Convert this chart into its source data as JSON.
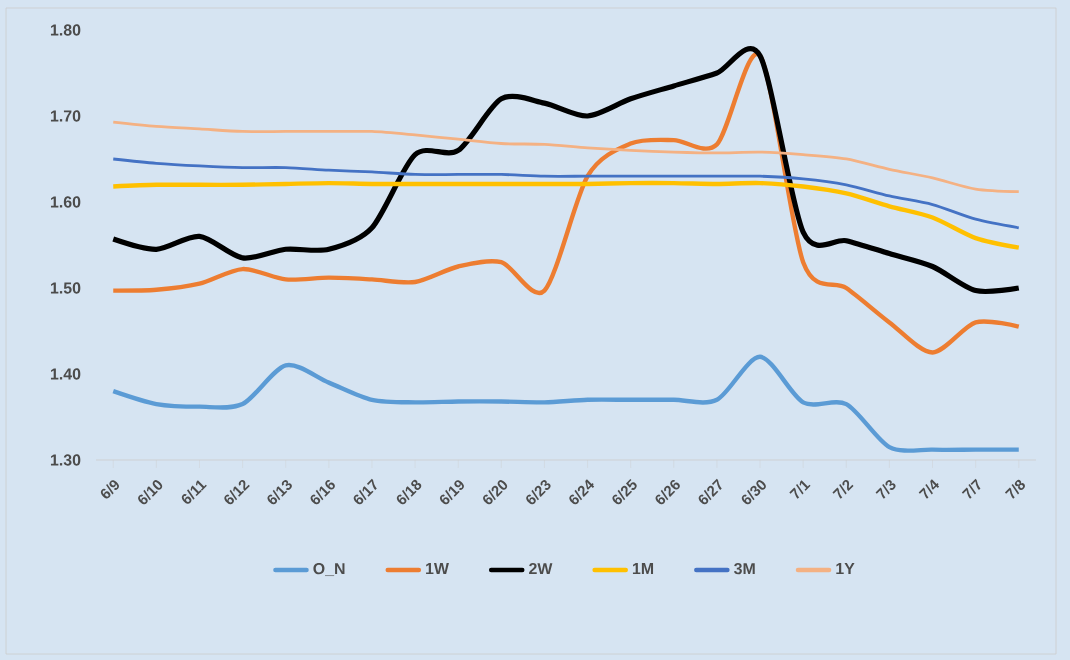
{
  "chart_data": {
    "type": "line",
    "categories": [
      "6/9",
      "6/10",
      "6/11",
      "6/12",
      "6/13",
      "6/16",
      "6/17",
      "6/18",
      "6/19",
      "6/20",
      "6/23",
      "6/24",
      "6/25",
      "6/26",
      "6/27",
      "6/30",
      "7/1",
      "7/2",
      "7/3",
      "7/4",
      "7/7",
      "7/8"
    ],
    "series": [
      {
        "name": "O_N",
        "color": "#5b9bd5",
        "values": [
          1.38,
          1.365,
          1.362,
          1.365,
          1.41,
          1.39,
          1.37,
          1.367,
          1.368,
          1.368,
          1.367,
          1.37,
          1.37,
          1.37,
          1.37,
          1.42,
          1.367,
          1.365,
          1.315,
          1.312,
          1.312,
          1.312
        ]
      },
      {
        "name": "1W",
        "color": "#ed7d31",
        "values": [
          1.497,
          1.498,
          1.505,
          1.522,
          1.51,
          1.512,
          1.51,
          1.507,
          1.525,
          1.53,
          1.497,
          1.63,
          1.668,
          1.672,
          1.667,
          1.77,
          1.53,
          1.5,
          1.46,
          1.425,
          1.46,
          1.455
        ]
      },
      {
        "name": "2W",
        "color": "#000000",
        "values": [
          1.557,
          1.545,
          1.56,
          1.535,
          1.545,
          1.545,
          1.57,
          1.655,
          1.66,
          1.72,
          1.715,
          1.7,
          1.72,
          1.735,
          1.75,
          1.77,
          1.565,
          1.555,
          1.54,
          1.525,
          1.497,
          1.5
        ]
      },
      {
        "name": "1M",
        "color": "#ffc000",
        "values": [
          1.618,
          1.62,
          1.62,
          1.62,
          1.621,
          1.622,
          1.621,
          1.621,
          1.621,
          1.621,
          1.621,
          1.621,
          1.622,
          1.622,
          1.621,
          1.622,
          1.618,
          1.61,
          1.595,
          1.582,
          1.558,
          1.547
        ]
      },
      {
        "name": "3M",
        "color": "#4472c4",
        "values": [
          1.65,
          1.645,
          1.642,
          1.64,
          1.64,
          1.637,
          1.635,
          1.632,
          1.632,
          1.632,
          1.63,
          1.63,
          1.63,
          1.63,
          1.63,
          1.63,
          1.627,
          1.62,
          1.607,
          1.597,
          1.58,
          1.57
        ]
      },
      {
        "name": "1Y",
        "color": "#f4b183",
        "values": [
          1.693,
          1.688,
          1.685,
          1.682,
          1.682,
          1.682,
          1.682,
          1.678,
          1.673,
          1.668,
          1.667,
          1.663,
          1.66,
          1.658,
          1.657,
          1.658,
          1.655,
          1.65,
          1.638,
          1.628,
          1.615,
          1.612
        ]
      }
    ],
    "ylim": [
      1.3,
      1.8
    ],
    "yticks": [
      {
        "value": 1.3,
        "label": "1.30"
      },
      {
        "value": 1.4,
        "label": "1.40"
      },
      {
        "value": 1.5,
        "label": "1.50"
      },
      {
        "value": 1.6,
        "label": "1.60"
      },
      {
        "value": 1.7,
        "label": "1.70"
      },
      {
        "value": 1.8,
        "label": "1.80"
      }
    ],
    "grid": false,
    "legend": "bottom",
    "marker": "none",
    "line_style": "solid"
  }
}
